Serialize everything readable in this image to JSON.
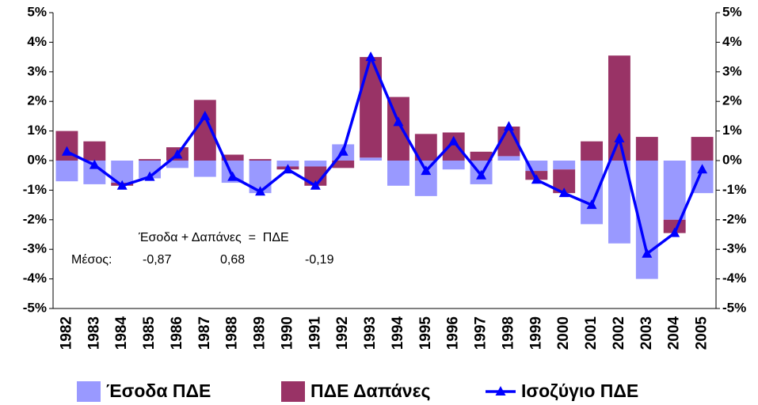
{
  "chart_data": {
    "type": "stacked-bar-line",
    "categories": [
      "1982",
      "1983",
      "1984",
      "1985",
      "1986",
      "1987",
      "1988",
      "1989",
      "1990",
      "1991",
      "1992",
      "1993",
      "1994",
      "1995",
      "1996",
      "1997",
      "1998",
      "1999",
      "2000",
      "2001",
      "2002",
      "2003",
      "2004",
      "2005"
    ],
    "series": [
      {
        "name": "Έσοδα ΠΔΕ",
        "type": "bar",
        "color": "#9999ff",
        "values": [
          -0.7,
          -0.8,
          -0.75,
          -0.6,
          -0.25,
          -0.55,
          -0.75,
          -1.1,
          -0.2,
          -0.2,
          0.55,
          0.1,
          -0.85,
          -1.2,
          -0.3,
          -0.8,
          0.15,
          -0.35,
          -0.3,
          -2.15,
          -2.8,
          -4.0,
          -2.0,
          -1.1
        ]
      },
      {
        "name": "ΠΔΕ Δαπάνες",
        "type": "bar",
        "color": "#993366",
        "values": [
          1.0,
          0.65,
          -0.1,
          0.05,
          0.45,
          2.05,
          0.2,
          0.05,
          -0.1,
          -0.65,
          -0.25,
          3.4,
          2.15,
          0.9,
          0.95,
          0.3,
          1.0,
          -0.3,
          -0.8,
          0.65,
          3.55,
          0.8,
          -0.45,
          0.8
        ]
      },
      {
        "name": "Ισοζύγιο ΠΔΕ",
        "type": "line",
        "color": "#0000ff",
        "values": [
          0.3,
          -0.15,
          -0.85,
          -0.55,
          0.2,
          1.5,
          -0.55,
          -1.05,
          -0.3,
          -0.85,
          0.3,
          3.5,
          1.3,
          -0.35,
          0.65,
          -0.5,
          1.15,
          -0.65,
          -1.1,
          -1.5,
          0.75,
          -3.15,
          -2.45,
          -0.3
        ]
      }
    ],
    "ylim": [
      -5,
      5
    ],
    "yticks": [
      {
        "value": -5,
        "label": "-5%"
      },
      {
        "value": -4,
        "label": "-4%"
      },
      {
        "value": -3,
        "label": "-3%"
      },
      {
        "value": -2,
        "label": "-2%"
      },
      {
        "value": -1,
        "label": "-1%"
      },
      {
        "value": 0,
        "label": "0%"
      },
      {
        "value": 1,
        "label": "1%"
      },
      {
        "value": 2,
        "label": "2%"
      },
      {
        "value": 3,
        "label": "3%"
      },
      {
        "value": 4,
        "label": "4%"
      },
      {
        "value": 5,
        "label": "5%"
      }
    ],
    "y2lim": [
      -5,
      5
    ],
    "y2ticks": [
      {
        "value": -5,
        "label": "-5%"
      },
      {
        "value": -4,
        "label": "-4%"
      },
      {
        "value": -3,
        "label": "-3%"
      },
      {
        "value": -2,
        "label": "-2%"
      },
      {
        "value": -1,
        "label": "-1%"
      },
      {
        "value": 0,
        "label": "0%"
      },
      {
        "value": 1,
        "label": "1%"
      },
      {
        "value": 2,
        "label": "2%"
      },
      {
        "value": 3,
        "label": "3%"
      },
      {
        "value": 4,
        "label": "4%"
      },
      {
        "value": 5,
        "label": "5%"
      }
    ],
    "annotations": [
      "Έσοδα + Δαπάνες  =  ΠΔΕ",
      "Μέσος:",
      "-0,87",
      "0,68",
      "-0,19"
    ],
    "legend": "bottom",
    "grid": false
  }
}
